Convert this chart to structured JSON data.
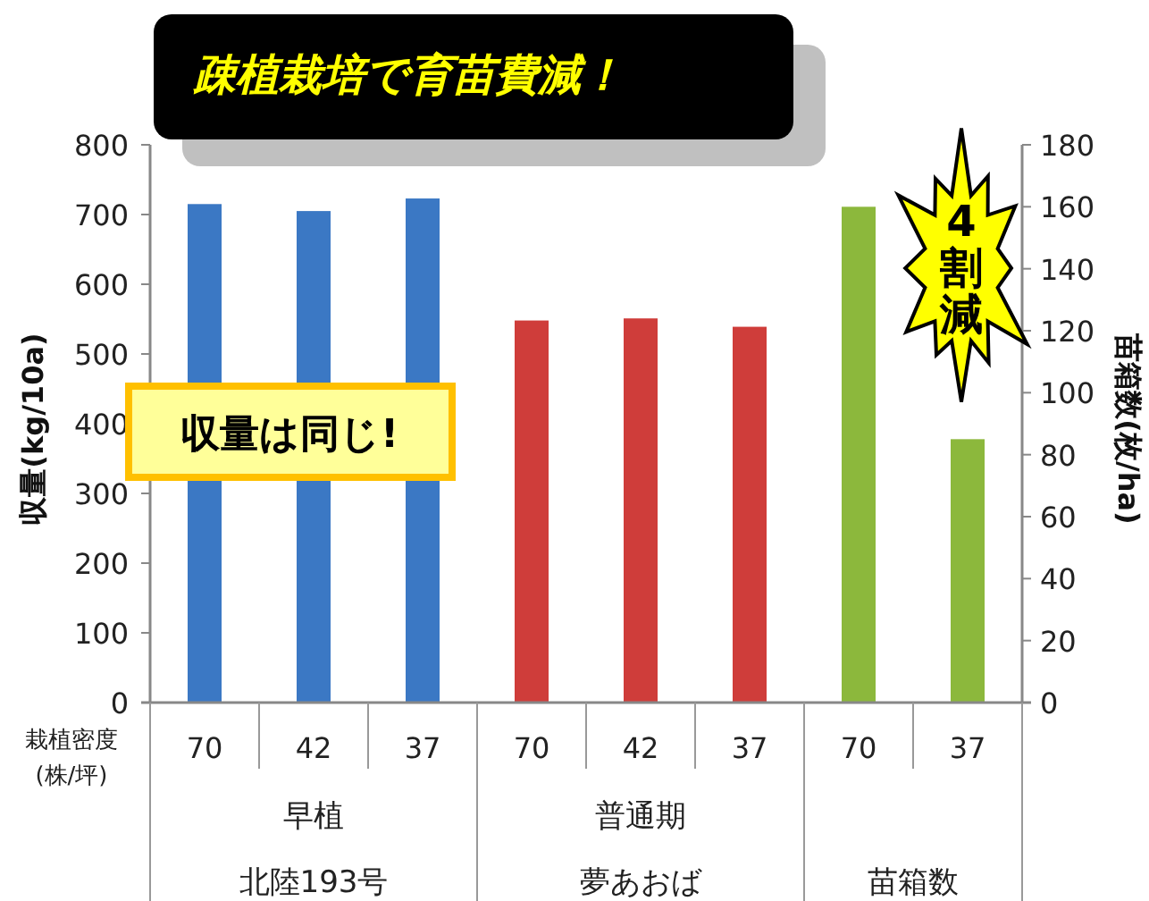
{
  "chart_data": {
    "type": "bar",
    "title": "疎植栽培で育苗費減！",
    "ylabel": "収量(kg/10a)",
    "y2label": "苗箱数(枚/ha)",
    "categories": [
      "70",
      "42",
      "37",
      "70",
      "42",
      "37",
      "70",
      "37"
    ],
    "series": [
      {
        "color": "#3b78c4",
        "values": [
          715,
          705,
          723,
          null,
          null,
          null,
          null,
          null
        ]
      },
      {
        "color": "#cf3d3a",
        "values": [
          null,
          null,
          null,
          548,
          551,
          539,
          null,
          null
        ]
      },
      {
        "color": "#8cb83c",
        "axis": "y2",
        "values": [
          null,
          null,
          null,
          null,
          null,
          null,
          160,
          85
        ]
      }
    ],
    "ylim": [
      0,
      800
    ],
    "yticks": [
      0,
      100,
      200,
      300,
      400,
      500,
      600,
      700,
      800
    ],
    "y2lim": [
      0,
      180
    ],
    "y2ticks": [
      0,
      20,
      40,
      60,
      80,
      100,
      120,
      140,
      160,
      180
    ],
    "annotations": [
      "栽植密度\n(株/坪)",
      "早植",
      "普通期",
      "北陸193号",
      "夢あおば",
      "苗箱数",
      "収量は同じ!",
      "4割減"
    ]
  }
}
